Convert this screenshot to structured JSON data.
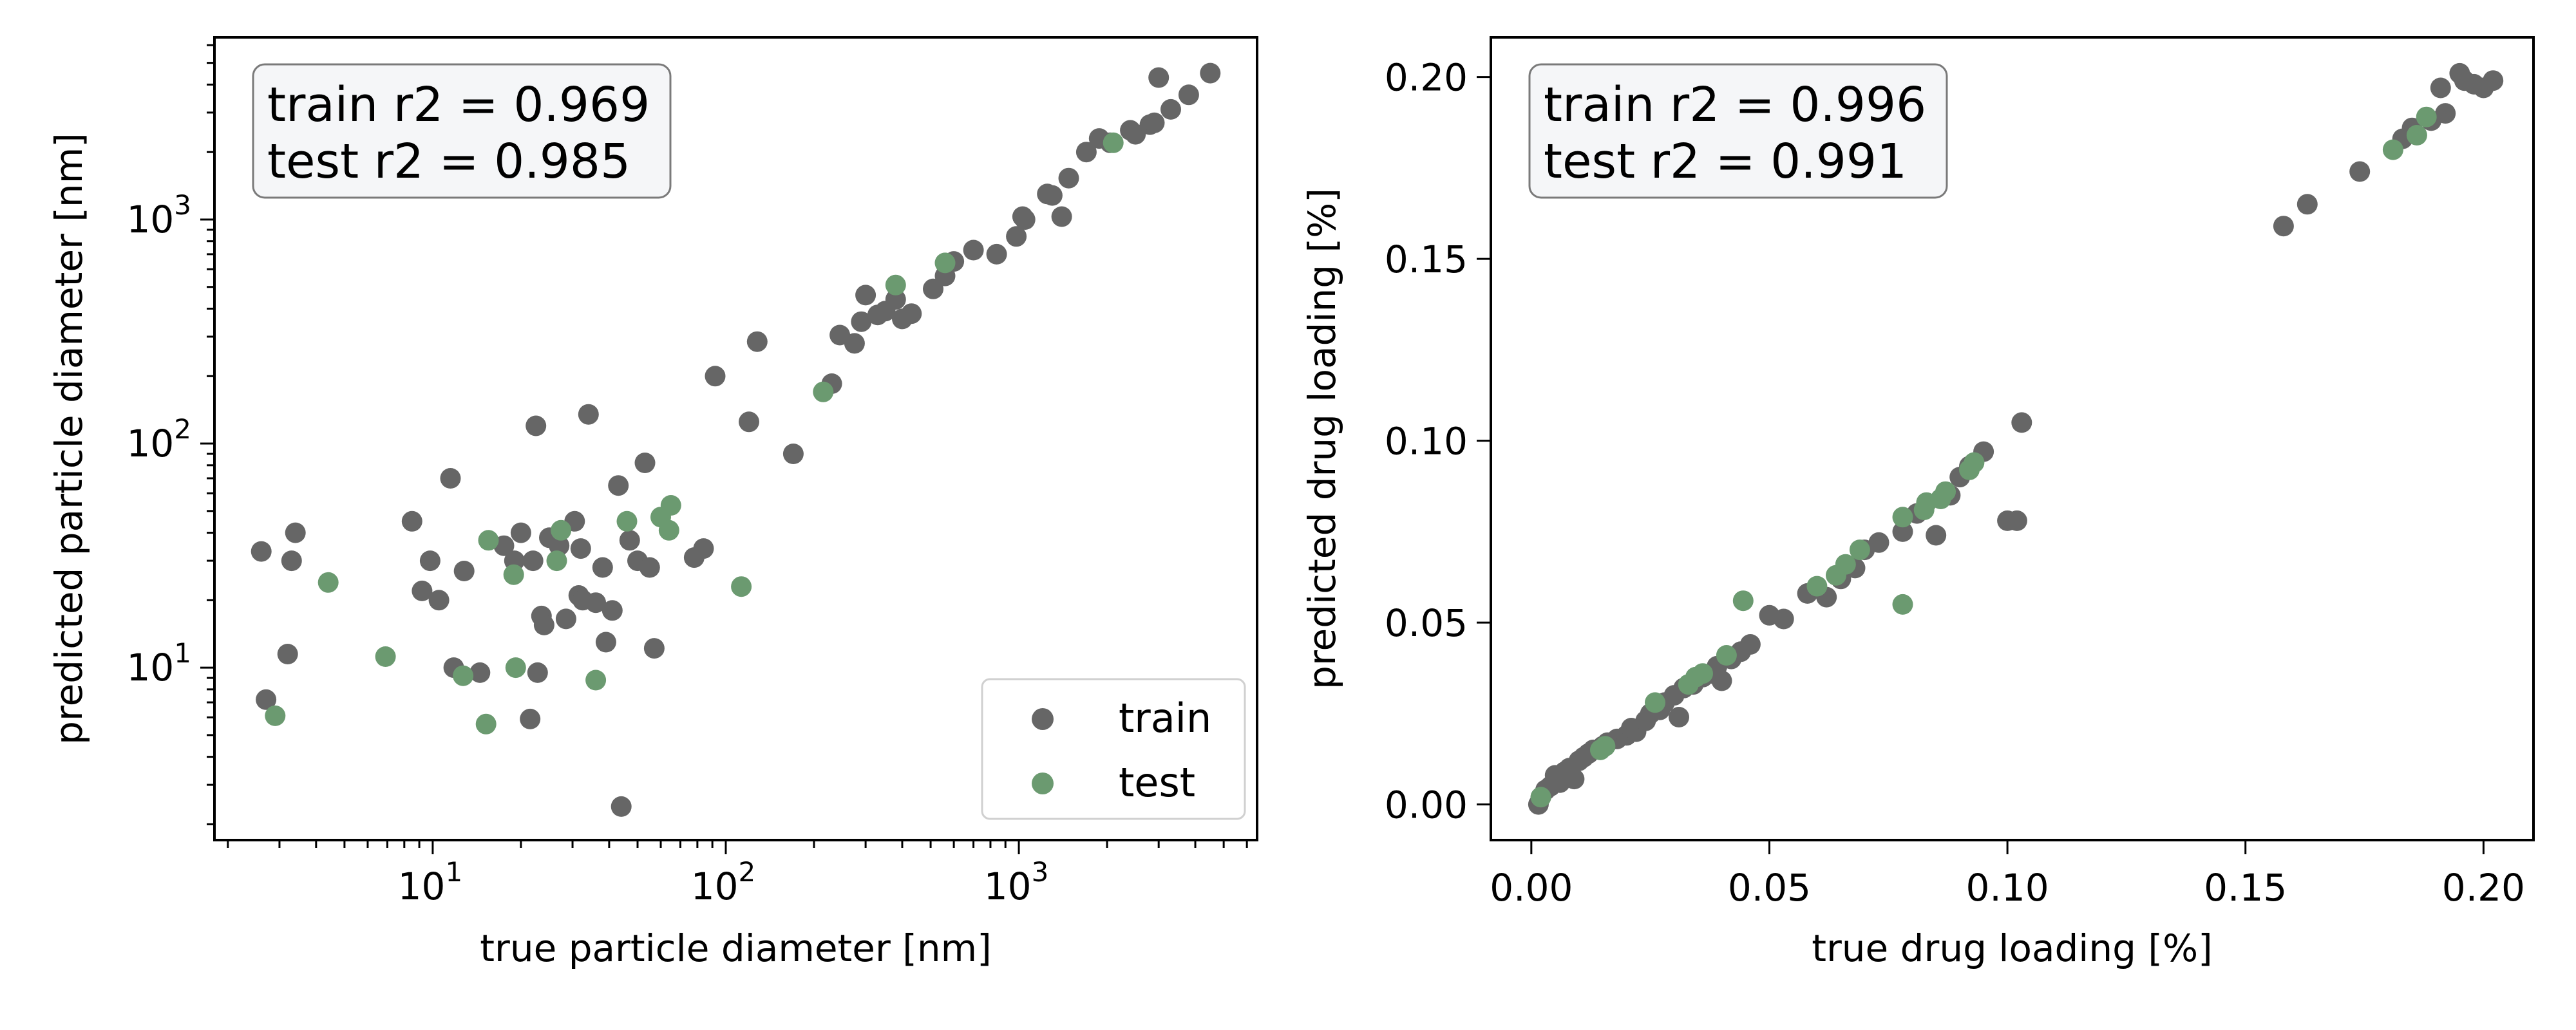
{
  "colors": {
    "train": "#666666",
    "test": "#6b9a70",
    "axis": "#000000",
    "box_bg": "#f5f6f8",
    "box_edge": "#7a7a7a"
  },
  "chart_data": [
    {
      "type": "scatter",
      "xlabel": "true particle diameter [nm]",
      "ylabel": "predicted particle diameter [nm]",
      "xscale": "log",
      "yscale": "log",
      "xlim": [
        1.8,
        6500
      ],
      "ylim": [
        1.7,
        6500
      ],
      "x_ticks": [
        {
          "value": 10,
          "base": "10",
          "exp": "1"
        },
        {
          "value": 100,
          "base": "10",
          "exp": "2"
        },
        {
          "value": 1000,
          "base": "10",
          "exp": "3"
        }
      ],
      "y_ticks": [
        {
          "value": 10,
          "base": "10",
          "exp": "1"
        },
        {
          "value": 100,
          "base": "10",
          "exp": "2"
        },
        {
          "value": 1000,
          "base": "10",
          "exp": "3"
        }
      ],
      "annotation": [
        "train r2 = 0.969",
        "test r2 = 0.985"
      ],
      "annotation_position": "top-left",
      "legend": {
        "position": "bottom-right",
        "entries": [
          "train",
          "test"
        ]
      },
      "grid": false,
      "series": [
        {
          "name": "train",
          "x": [
            2.6,
            2.7,
            3.2,
            3.3,
            3.4,
            8.5,
            9.2,
            9.8,
            10.5,
            11.5,
            11.8,
            12.8,
            14.5,
            17.5,
            19,
            20,
            21.5,
            22,
            22.5,
            22.8,
            23.5,
            24,
            25,
            27,
            28.5,
            30.5,
            31.5,
            32,
            32.5,
            34,
            36,
            38,
            39,
            41,
            43,
            44,
            47,
            50,
            53,
            55,
            57,
            78,
            84,
            92,
            120,
            128,
            170,
            230,
            245,
            275,
            290,
            300,
            330,
            350,
            380,
            400,
            430,
            510,
            560,
            600,
            700,
            840,
            980,
            1030,
            1050,
            1250,
            1300,
            1400,
            1480,
            1700,
            1880,
            2050,
            2400,
            2500,
            2800,
            2900,
            3000,
            3300,
            3800,
            4500
          ],
          "y": [
            33,
            7.2,
            11.5,
            30,
            40,
            45,
            22,
            30,
            20,
            70,
            10,
            27,
            9.5,
            35,
            30,
            40,
            5.9,
            30,
            120,
            9.5,
            17,
            15.5,
            38,
            35,
            16.5,
            45,
            21,
            34,
            20,
            135,
            19.5,
            28,
            13,
            18,
            65,
            2.4,
            37,
            30,
            82,
            28,
            12.2,
            31,
            34,
            200,
            125,
            285,
            90,
            185,
            305,
            280,
            350,
            460,
            375,
            390,
            440,
            360,
            380,
            490,
            560,
            650,
            730,
            700,
            840,
            1030,
            1000,
            1300,
            1280,
            1030,
            1530,
            2000,
            2300,
            2200,
            2500,
            2400,
            2650,
            2700,
            4300,
            3100,
            3600,
            4500
          ]
        },
        {
          "name": "test",
          "x": [
            2.9,
            4.4,
            6.9,
            12.7,
            15.2,
            15.5,
            18.9,
            19.2,
            26.5,
            27.4,
            36,
            46,
            60,
            64,
            65,
            113,
            215,
            380,
            560,
            2100
          ],
          "y": [
            6.1,
            24,
            11.2,
            9.2,
            5.6,
            37,
            26,
            10,
            30,
            41,
            8.8,
            45,
            47,
            41,
            53,
            23,
            170,
            510,
            640,
            2200
          ]
        }
      ]
    },
    {
      "type": "scatter",
      "xlabel": "true drug loading [%]",
      "ylabel": "predicted drug loading [%]",
      "xlim": [
        -0.0085,
        0.2105
      ],
      "ylim": [
        -0.0098,
        0.2109
      ],
      "x_ticks": [
        "0.00",
        "0.05",
        "0.10",
        "0.15",
        "0.20"
      ],
      "y_ticks": [
        "0.00",
        "0.05",
        "0.10",
        "0.15",
        "0.20"
      ],
      "annotation": [
        "train r2 = 0.996",
        "test r2 = 0.991"
      ],
      "annotation_position": "top-left",
      "grid": false,
      "series": [
        {
          "name": "train",
          "x": [
            0.0015,
            0.002,
            0.003,
            0.004,
            0.005,
            0.006,
            0.007,
            0.008,
            0.009,
            0.01,
            0.011,
            0.012,
            0.013,
            0.015,
            0.016,
            0.018,
            0.02,
            0.021,
            0.022,
            0.024,
            0.025,
            0.027,
            0.028,
            0.03,
            0.031,
            0.032,
            0.034,
            0.036,
            0.038,
            0.039,
            0.04,
            0.042,
            0.044,
            0.046,
            0.05,
            0.053,
            0.058,
            0.062,
            0.065,
            0.068,
            0.07,
            0.073,
            0.078,
            0.081,
            0.085,
            0.088,
            0.09,
            0.092,
            0.095,
            0.1,
            0.102,
            0.103,
            0.158,
            0.163,
            0.174,
            0.183,
            0.185,
            0.189,
            0.191,
            0.192,
            0.195,
            0.196,
            0.198,
            0.2,
            0.202
          ],
          "y": [
            0,
            0.002,
            0.004,
            0.005,
            0.008,
            0.006,
            0.009,
            0.01,
            0.007,
            0.012,
            0.013,
            0.014,
            0.015,
            0.016,
            0.017,
            0.018,
            0.019,
            0.021,
            0.02,
            0.023,
            0.025,
            0.026,
            0.028,
            0.03,
            0.024,
            0.032,
            0.033,
            0.035,
            0.036,
            0.038,
            0.034,
            0.04,
            0.042,
            0.044,
            0.052,
            0.051,
            0.058,
            0.057,
            0.062,
            0.065,
            0.07,
            0.072,
            0.075,
            0.08,
            0.074,
            0.085,
            0.09,
            0.093,
            0.097,
            0.078,
            0.078,
            0.105,
            0.159,
            0.165,
            0.174,
            0.183,
            0.186,
            0.188,
            0.197,
            0.19,
            0.201,
            0.199,
            0.198,
            0.197,
            0.199
          ]
        },
        {
          "name": "test",
          "x": [
            0.002,
            0.0145,
            0.0155,
            0.026,
            0.033,
            0.0345,
            0.036,
            0.041,
            0.0445,
            0.06,
            0.064,
            0.066,
            0.069,
            0.078,
            0.078,
            0.0825,
            0.083,
            0.086,
            0.087,
            0.092,
            0.093,
            0.181,
            0.186,
            0.188
          ],
          "y": [
            0.002,
            0.015,
            0.016,
            0.028,
            0.033,
            0.035,
            0.036,
            0.041,
            0.056,
            0.06,
            0.063,
            0.066,
            0.07,
            0.055,
            0.079,
            0.081,
            0.083,
            0.084,
            0.086,
            0.092,
            0.094,
            0.18,
            0.184,
            0.189
          ]
        }
      ]
    }
  ]
}
